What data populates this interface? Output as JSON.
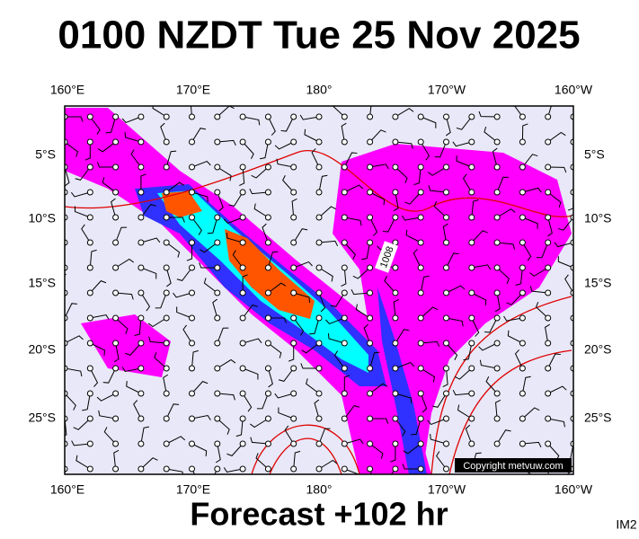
{
  "header": {
    "title": "0100 NZDT Tue 25 Nov 2025"
  },
  "map": {
    "lon_labels": [
      "160°E",
      "170°E",
      "180°",
      "170°W",
      "160°W"
    ],
    "lat_labels": [
      "5°S",
      "10°S",
      "15°S",
      "20°S",
      "25°S"
    ],
    "contour_labels": [
      "1008"
    ],
    "copyright": "Copyright metvuw.com"
  },
  "footer": {
    "forecast": "Forecast +102 hr",
    "image_id": "IM2"
  }
}
